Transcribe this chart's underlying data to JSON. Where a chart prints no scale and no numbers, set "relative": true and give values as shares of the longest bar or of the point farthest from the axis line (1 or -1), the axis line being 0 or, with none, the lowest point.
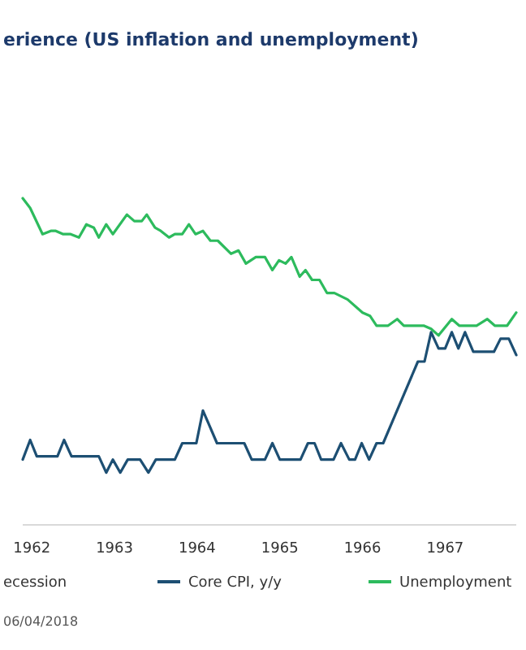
{
  "chart_data": {
    "type": "line",
    "title": "erience (US inflation and unemployment)",
    "relative": true,
    "xlim": [
      1961.89,
      1967.86
    ],
    "xticks": [
      1962,
      1963,
      1964,
      1965,
      1966,
      1967
    ],
    "legend": "bottom",
    "annotations": [
      "ecession",
      "06/04/2018"
    ],
    "series": [
      {
        "name": "Core CPI, y/y",
        "color": "#1d4f73",
        "x": [
          1961.89,
          1961.98,
          1962.06,
          1962.31,
          1962.39,
          1962.48,
          1962.81,
          1962.9,
          1962.98,
          1963.07,
          1963.16,
          1963.31,
          1963.41,
          1963.5,
          1963.73,
          1963.82,
          1963.99,
          1964.07,
          1964.24,
          1964.57,
          1964.66,
          1964.82,
          1964.91,
          1965.0,
          1965.25,
          1965.34,
          1965.42,
          1965.5,
          1965.65,
          1965.74,
          1965.84,
          1965.91,
          1965.99,
          1966.08,
          1966.17,
          1966.25,
          1966.67,
          1966.75,
          1966.83,
          1966.92,
          1967.0,
          1967.08,
          1967.16,
          1967.24,
          1967.34,
          1967.59,
          1967.67,
          1967.77,
          1967.86
        ],
        "values": [
          0.2,
          0.26,
          0.21,
          0.21,
          0.26,
          0.21,
          0.21,
          0.16,
          0.2,
          0.16,
          0.2,
          0.2,
          0.16,
          0.2,
          0.2,
          0.25,
          0.25,
          0.35,
          0.25,
          0.25,
          0.2,
          0.2,
          0.25,
          0.2,
          0.2,
          0.25,
          0.25,
          0.2,
          0.2,
          0.25,
          0.2,
          0.2,
          0.25,
          0.2,
          0.25,
          0.25,
          0.5,
          0.5,
          0.59,
          0.54,
          0.54,
          0.59,
          0.54,
          0.59,
          0.53,
          0.53,
          0.57,
          0.57,
          0.52
        ]
      },
      {
        "name": "Unemployment",
        "color": "#2dbb5d",
        "x": [
          1961.89,
          1961.98,
          1962.13,
          1962.23,
          1962.29,
          1962.38,
          1962.47,
          1962.57,
          1962.66,
          1962.75,
          1962.81,
          1962.9,
          1962.98,
          1963.15,
          1963.24,
          1963.33,
          1963.39,
          1963.49,
          1963.56,
          1963.66,
          1963.73,
          1963.82,
          1963.9,
          1963.98,
          1964.07,
          1964.16,
          1964.25,
          1964.41,
          1964.5,
          1964.59,
          1964.71,
          1964.82,
          1964.91,
          1964.99,
          1965.07,
          1965.14,
          1965.24,
          1965.31,
          1965.39,
          1965.48,
          1965.57,
          1965.66,
          1965.82,
          1966.0,
          1966.09,
          1966.17,
          1966.31,
          1966.42,
          1966.5,
          1966.74,
          1966.83,
          1966.92,
          1967.08,
          1967.17,
          1967.38,
          1967.51,
          1967.6,
          1967.75,
          1967.86
        ],
        "values": [
          1.0,
          0.97,
          0.89,
          0.9,
          0.9,
          0.89,
          0.89,
          0.88,
          0.92,
          0.91,
          0.88,
          0.92,
          0.89,
          0.95,
          0.93,
          0.93,
          0.95,
          0.91,
          0.9,
          0.88,
          0.89,
          0.89,
          0.92,
          0.89,
          0.9,
          0.87,
          0.87,
          0.83,
          0.84,
          0.8,
          0.82,
          0.82,
          0.78,
          0.81,
          0.8,
          0.82,
          0.76,
          0.78,
          0.75,
          0.75,
          0.71,
          0.71,
          0.69,
          0.65,
          0.64,
          0.61,
          0.61,
          0.63,
          0.61,
          0.61,
          0.6,
          0.58,
          0.63,
          0.61,
          0.61,
          0.63,
          0.61,
          0.61,
          0.65
        ]
      }
    ]
  }
}
